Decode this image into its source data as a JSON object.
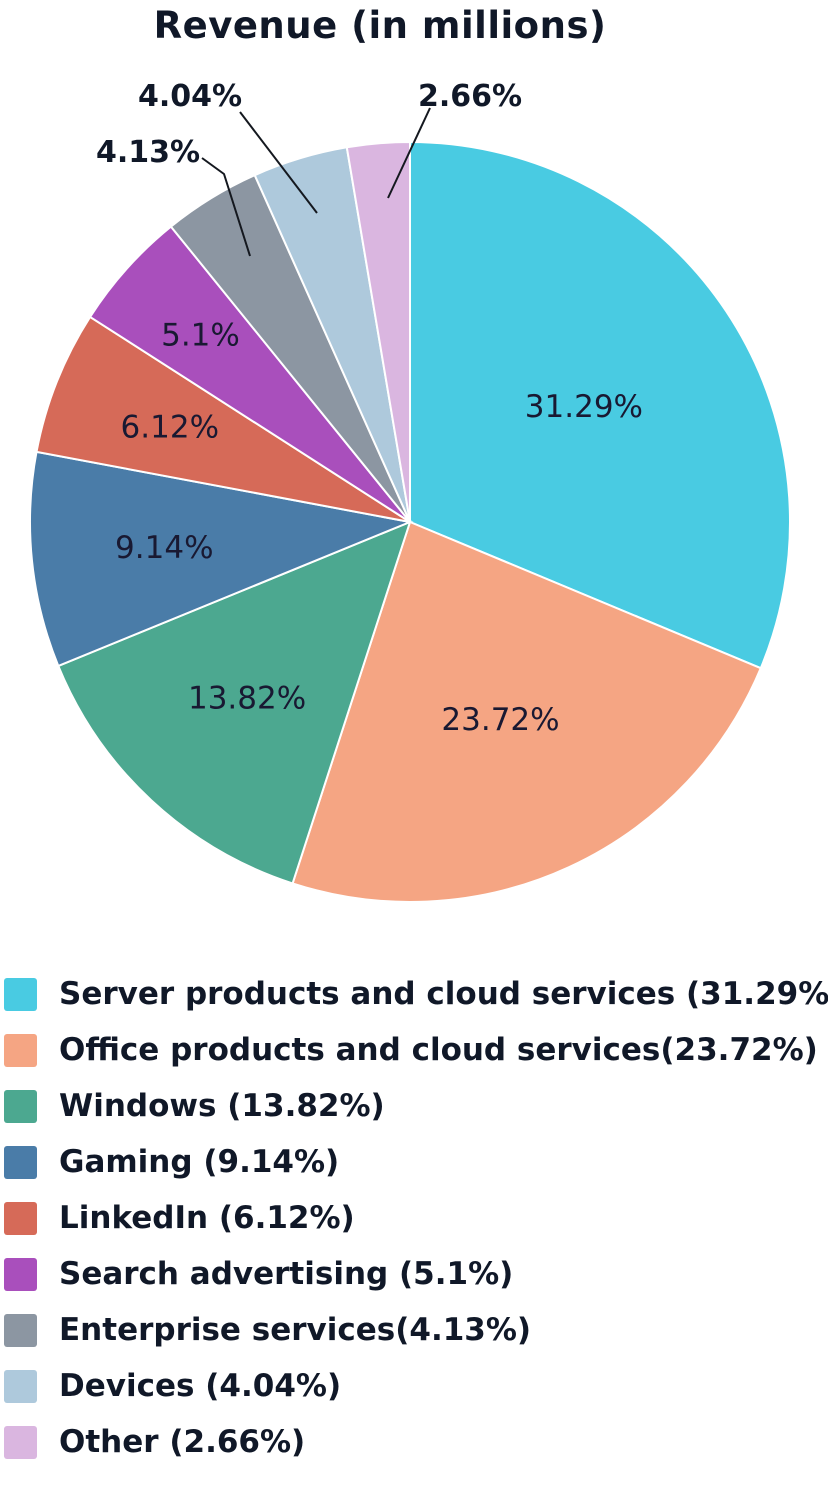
{
  "chart_data": {
    "type": "pie",
    "title": "Revenue (in millions)",
    "legend_position": "bottom-left",
    "grid": false,
    "slices": [
      {
        "label": "Server products and cloud services",
        "value": 31.29,
        "display": "31.29%",
        "legend": "Server products and cloud services (31.29%)",
        "color": "#49cbe2"
      },
      {
        "label": "Office products and cloud services",
        "value": 23.72,
        "display": "23.72%",
        "legend": "Office products and cloud services(23.72%)",
        "color": "#f5a583"
      },
      {
        "label": "Windows",
        "value": 13.82,
        "display": "13.82%",
        "legend": "Windows (13.82%)",
        "color": "#4ca890"
      },
      {
        "label": "Gaming",
        "value": 9.14,
        "display": "9.14%",
        "legend": "Gaming (9.14%)",
        "color": "#4a7ca8"
      },
      {
        "label": "LinkedIn",
        "value": 6.12,
        "display": "6.12%",
        "legend": "LinkedIn (6.12%)",
        "color": "#d66a58"
      },
      {
        "label": "Search advertising",
        "value": 5.1,
        "display": "5.1%",
        "legend": "Search advertising (5.1%)",
        "color": "#a94fbc"
      },
      {
        "label": "Enterprise services",
        "value": 4.13,
        "display": "4.13%",
        "legend": "Enterprise services(4.13%)",
        "color": "#8c96a2"
      },
      {
        "label": "Devices",
        "value": 4.04,
        "display": "4.04%",
        "legend": "Devices (4.04%)",
        "color": "#aec9dc"
      },
      {
        "label": "Other",
        "value": 2.66,
        "display": "2.66%",
        "legend": "Other (2.66%)",
        "color": "#dab6e0"
      }
    ]
  }
}
